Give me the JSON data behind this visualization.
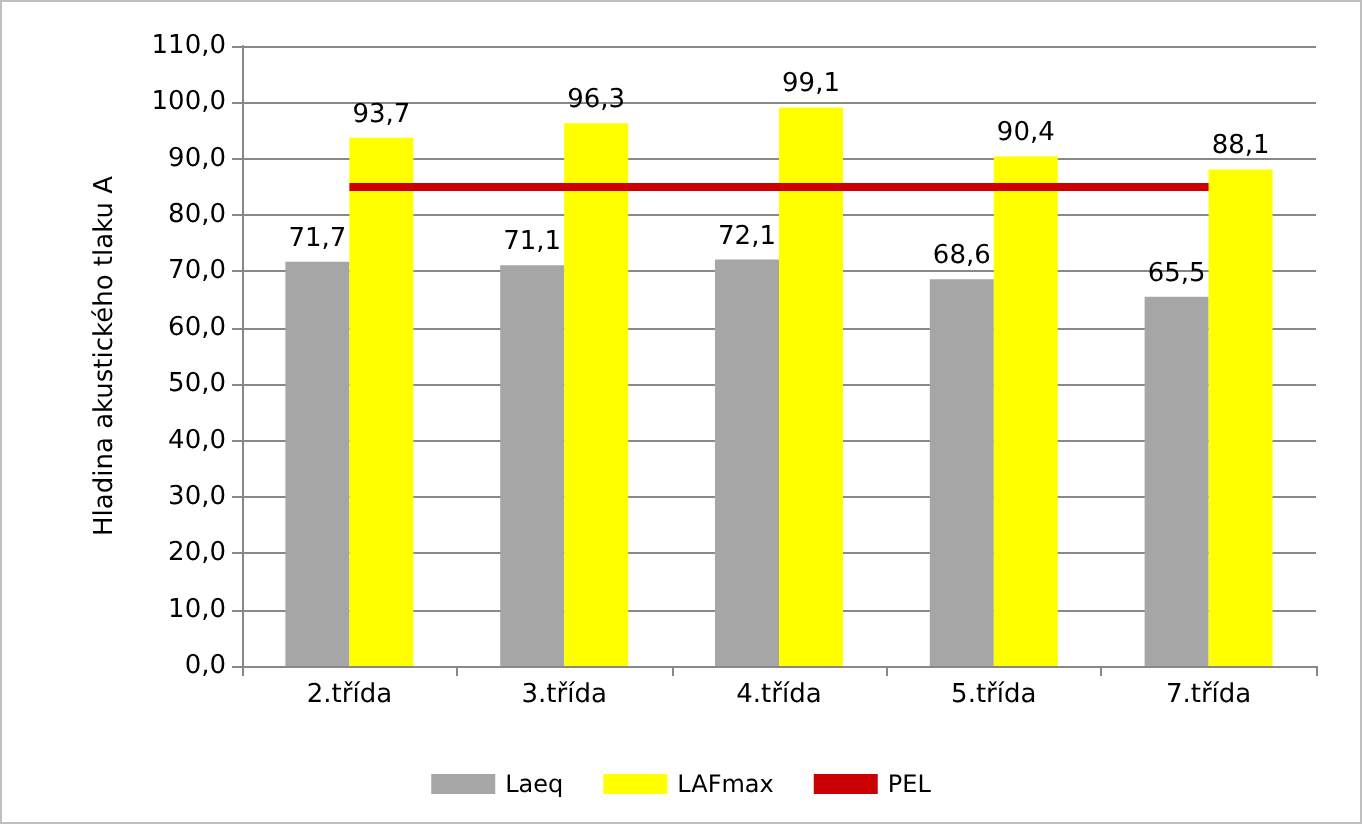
{
  "chart_data": {
    "type": "bar",
    "ylabel": "Hladina akustického tlaku A",
    "categories": [
      "2.třída",
      "3.třída",
      "4.třída",
      "5.třída",
      "7.třída"
    ],
    "series": [
      {
        "name": "Laeq",
        "color": "#a6a6a6",
        "values": [
          71.7,
          71.1,
          72.1,
          68.6,
          65.5
        ],
        "value_labels": [
          "71,7",
          "71,1",
          "72,1",
          "68,6",
          "65,5"
        ]
      },
      {
        "name": "LAFmax",
        "color": "#ffff00",
        "values": [
          93.7,
          96.3,
          99.1,
          90.4,
          88.1
        ],
        "value_labels": [
          "93,7",
          "96,3",
          "99,1",
          "90,4",
          "88,1"
        ]
      },
      {
        "name": "PEL",
        "type": "line",
        "color": "#cc0000",
        "values": [
          85,
          85,
          85,
          85,
          85
        ],
        "marker": "none"
      }
    ],
    "ylim": [
      0,
      110
    ],
    "yticks": [
      {
        "value": 0,
        "label": "0,0"
      },
      {
        "value": 10,
        "label": "10,0"
      },
      {
        "value": 20,
        "label": "20,0"
      },
      {
        "value": 30,
        "label": "30,0"
      },
      {
        "value": 40,
        "label": "40,0"
      },
      {
        "value": 50,
        "label": "50,0"
      },
      {
        "value": 60,
        "label": "60,0"
      },
      {
        "value": 70,
        "label": "70,0"
      },
      {
        "value": 80,
        "label": "80,0"
      },
      {
        "value": 90,
        "label": "90,0"
      },
      {
        "value": 100,
        "label": "100,0"
      },
      {
        "value": 110,
        "label": "110,0"
      }
    ],
    "grid": "y",
    "legend": "bottom"
  }
}
